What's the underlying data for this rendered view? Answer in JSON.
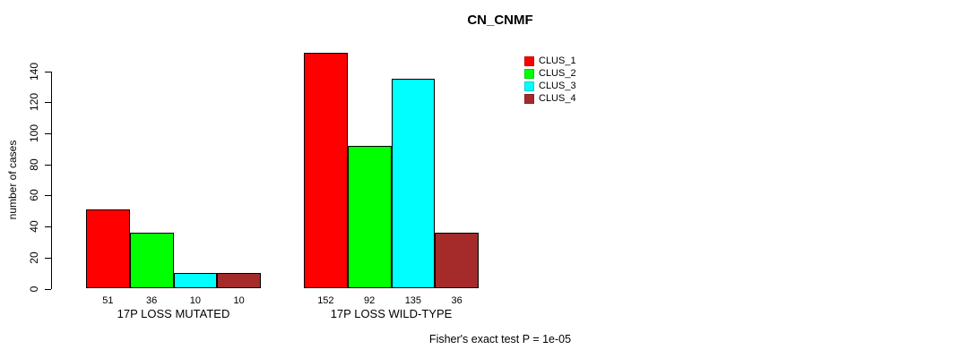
{
  "chart_data": {
    "type": "bar",
    "title": "CN_CNMF",
    "ylabel": "number of cases",
    "xlabel": "",
    "categories": [
      "17P LOSS MUTATED",
      "17P LOSS WILD-TYPE"
    ],
    "series": [
      {
        "name": "CLUS_1",
        "color": "#ff0000",
        "values": [
          51,
          152
        ]
      },
      {
        "name": "CLUS_2",
        "color": "#00ff00",
        "values": [
          36,
          92
        ]
      },
      {
        "name": "CLUS_3",
        "color": "#00ffff",
        "values": [
          10,
          135
        ]
      },
      {
        "name": "CLUS_4",
        "color": "#a52a2a",
        "values": [
          10,
          36
        ]
      }
    ],
    "yticks": [
      0,
      20,
      40,
      60,
      80,
      100,
      120,
      140
    ],
    "ylim": [
      0,
      140
    ],
    "bar_value_labels_shown": true,
    "legend_position": "top-right",
    "legend_entries": [
      "CLUS_1",
      "CLUS_2",
      "CLUS_3",
      "CLUS_4"
    ],
    "grid": false,
    "annotation": "Fisher's exact test P = 1e-05"
  }
}
